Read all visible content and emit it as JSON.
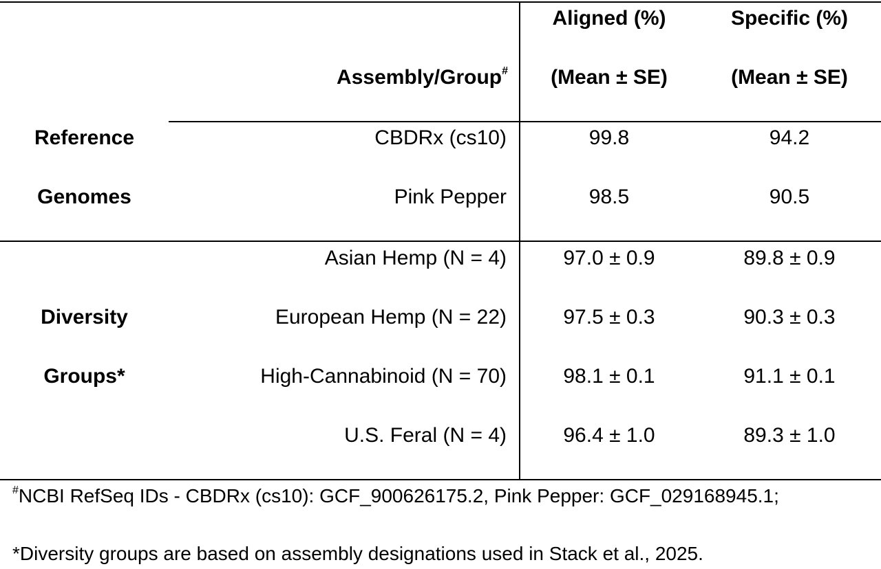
{
  "table": {
    "header": {
      "assembly_label": "Assembly/Group",
      "assembly_sup": "#",
      "aligned_line1": "Aligned (%)",
      "aligned_line2": "(Mean ± SE)",
      "specific_line1": "Specific (%)",
      "specific_line2": "(Mean ± SE)"
    },
    "sections": [
      {
        "label_line1": "Reference",
        "label_line2": "Genomes",
        "rows": [
          {
            "assembly": "CBDRx (cs10)",
            "aligned": "99.8",
            "specific": "94.2"
          },
          {
            "assembly": "Pink Pepper",
            "aligned": "98.5",
            "specific": "90.5"
          }
        ]
      },
      {
        "label_line1": "Diversity",
        "label_line2": "Groups*",
        "rows": [
          {
            "assembly": "Asian Hemp (N = 4)",
            "aligned": "97.0 ± 0.9",
            "specific": "89.8 ± 0.9"
          },
          {
            "assembly": "European Hemp (N = 22)",
            "aligned": "97.5 ± 0.3",
            "specific": "90.3 ± 0.3"
          },
          {
            "assembly": "High-Cannabinoid (N = 70)",
            "aligned": "98.1 ± 0.1",
            "specific": "91.1 ± 0.1"
          },
          {
            "assembly": "U.S. Feral (N = 4)",
            "aligned": "96.4 ± 1.0",
            "specific": "89.3 ± 1.0"
          }
        ]
      }
    ]
  },
  "footnotes": {
    "note1_sup": "#",
    "note1": "NCBI RefSeq IDs - CBDRx (cs10): GCF_900626175.2, Pink Pepper: GCF_029168945.1;",
    "note2": "*Diversity groups are based on assembly designations used in Stack et al., 2025."
  }
}
